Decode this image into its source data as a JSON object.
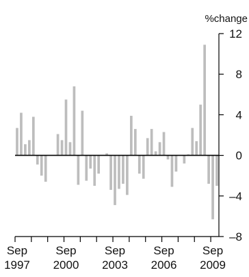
{
  "chart_data": {
    "type": "bar",
    "ylabel": "%change",
    "ylim": [
      -8,
      12
    ],
    "yticks": [
      12,
      8,
      4,
      0,
      -4,
      -8
    ],
    "y_axis_side": "right",
    "grid": false,
    "x_start_period": "Sep 1997",
    "x_tick_labels": [
      {
        "month": "Sep",
        "year": "1997",
        "index": 0
      },
      {
        "month": "Sep",
        "year": "2000",
        "index": 12
      },
      {
        "month": "Sep",
        "year": "2003",
        "index": 24
      },
      {
        "month": "Sep",
        "year": "2006",
        "index": 36
      },
      {
        "month": "Sep",
        "year": "2009",
        "index": 48
      }
    ],
    "frequency": "quarterly",
    "values": [
      2.7,
      4.2,
      1.1,
      1.5,
      3.8,
      -0.9,
      -2.0,
      -2.6,
      0.0,
      0.0,
      2.1,
      1.5,
      5.5,
      1.3,
      6.8,
      -2.9,
      4.4,
      -2.5,
      -1.3,
      -3.0,
      -1.8,
      0.0,
      0.2,
      -3.4,
      -4.9,
      -3.3,
      -2.8,
      -3.9,
      3.9,
      2.6,
      -1.8,
      -2.3,
      1.7,
      2.6,
      0.4,
      1.3,
      2.3,
      -0.4,
      -3.1,
      -1.6,
      0.0,
      -0.8,
      0.1,
      2.7,
      1.4,
      5.0,
      10.9,
      -2.8,
      -6.3,
      -3.0
    ],
    "bar_color": "#bdbdbd"
  }
}
